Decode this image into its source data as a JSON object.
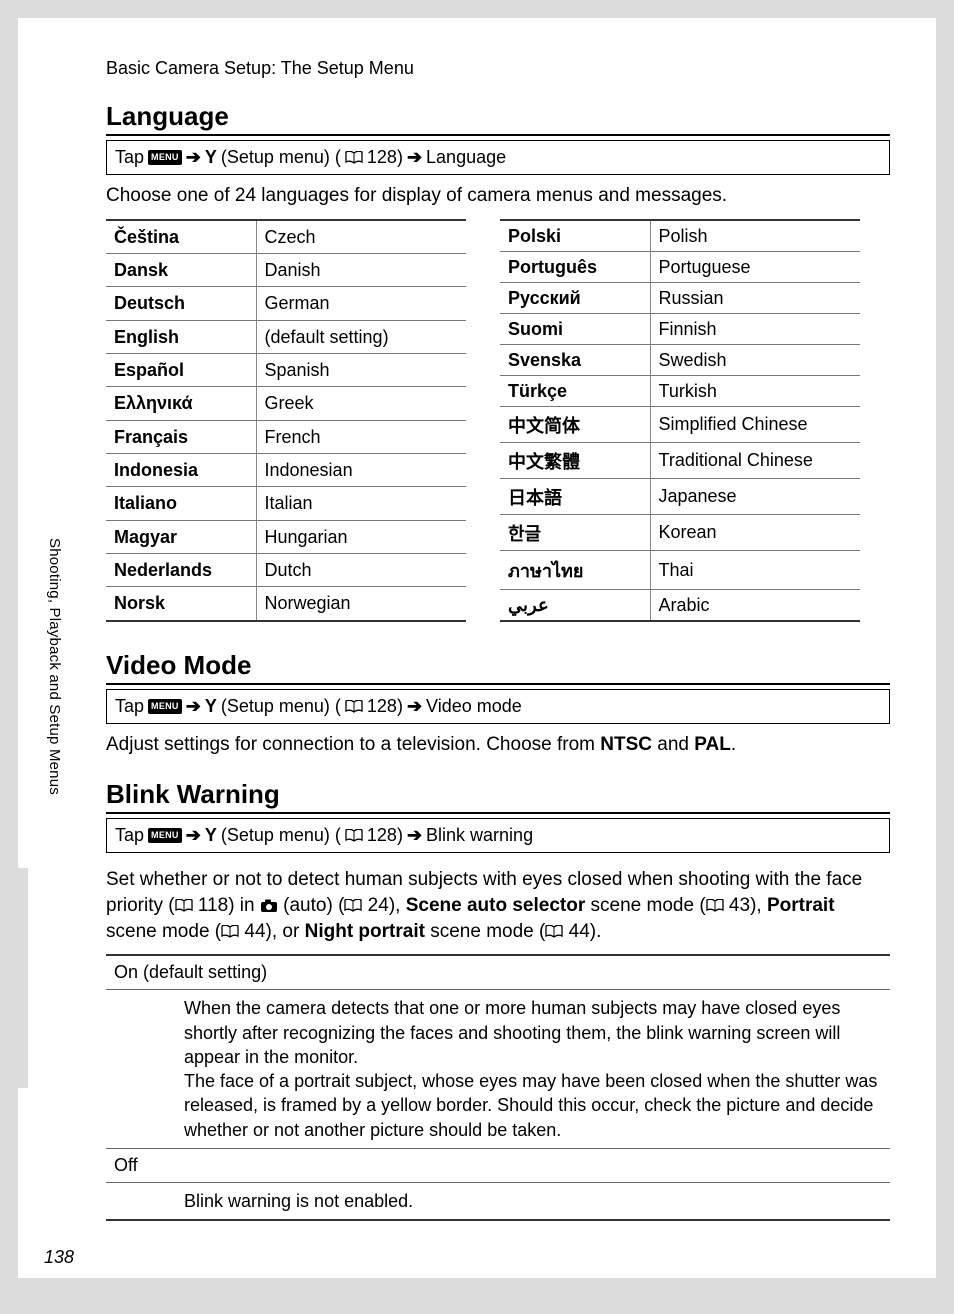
{
  "breadcrumb": "Basic Camera Setup: The Setup Menu",
  "side_label": "Shooting, Playback and Setup Menus",
  "page_number": "138",
  "icons": {
    "menu_label": "MENU",
    "arrow": "➔",
    "wrench": "Y"
  },
  "nav_common": {
    "tap": "Tap",
    "setup_menu": "(Setup menu) (",
    "page_ref": " 128)"
  },
  "language": {
    "heading": "Language",
    "nav_end": "Language",
    "desc": "Choose one of 24 languages for display of camera menus and messages.",
    "left": [
      {
        "native": "Čeština",
        "en": "Czech"
      },
      {
        "native": "Dansk",
        "en": "Danish"
      },
      {
        "native": "Deutsch",
        "en": "German"
      },
      {
        "native": "English",
        "en": "(default setting)"
      },
      {
        "native": "Español",
        "en": "Spanish"
      },
      {
        "native": "Ελληνικά",
        "en": "Greek"
      },
      {
        "native": "Français",
        "en": "French"
      },
      {
        "native": "Indonesia",
        "en": "Indonesian"
      },
      {
        "native": "Italiano",
        "en": "Italian"
      },
      {
        "native": "Magyar",
        "en": "Hungarian"
      },
      {
        "native": "Nederlands",
        "en": "Dutch"
      },
      {
        "native": "Norsk",
        "en": "Norwegian"
      }
    ],
    "right": [
      {
        "native": "Polski",
        "en": "Polish"
      },
      {
        "native": "Português",
        "en": "Portuguese"
      },
      {
        "native": "Русский",
        "en": "Russian"
      },
      {
        "native": "Suomi",
        "en": "Finnish"
      },
      {
        "native": "Svenska",
        "en": "Swedish"
      },
      {
        "native": "Türkçe",
        "en": "Turkish"
      },
      {
        "native": "中文简体",
        "en": "Simplified Chinese"
      },
      {
        "native": "中文繁體",
        "en": "Traditional Chinese"
      },
      {
        "native": "日本語",
        "en": "Japanese"
      },
      {
        "native": "한글",
        "en": "Korean"
      },
      {
        "native": "ภาษาไทย",
        "en": "Thai"
      },
      {
        "native": "عربي",
        "en": "Arabic"
      }
    ]
  },
  "video_mode": {
    "heading": "Video Mode",
    "nav_end": "Video mode",
    "desc_pre": "Adjust settings for connection to a television. Choose from ",
    "ntsc": "NTSC",
    "and": " and ",
    "pal": "PAL",
    "period": "."
  },
  "blink": {
    "heading": "Blink Warning",
    "nav_end": "Blink warning",
    "p1a": "Set whether or not to detect human subjects with eyes closed when shooting with the face priority (",
    "r1": " 118) in ",
    "p1b": " (auto) (",
    "r2": " 24), ",
    "b1": "Scene auto selector",
    "p1c": " scene mode (",
    "r3": " 43), ",
    "b2": "Portrait",
    "p1d": " scene mode (",
    "r4": " 44), or ",
    "b3": "Night portrait",
    "p1e": " scene mode (",
    "r5": " 44).",
    "on_label": "On (default setting)",
    "on_body": "When the camera detects that one or more human subjects may have closed eyes shortly after recognizing the faces and shooting them, the blink warning screen will appear in the monitor.\nThe face of a portrait subject, whose eyes may have been closed when the shutter was released, is framed by a yellow border. Should this occur, check the picture and decide whether or not another picture should be taken.",
    "off_label": "Off",
    "off_body": "Blink warning is not enabled."
  },
  "colors": {
    "page_bg": "#dcdcdc",
    "paper_bg": "#ffffff",
    "rule": "#777777",
    "rule_heavy": "#333333",
    "text": "#000000"
  }
}
